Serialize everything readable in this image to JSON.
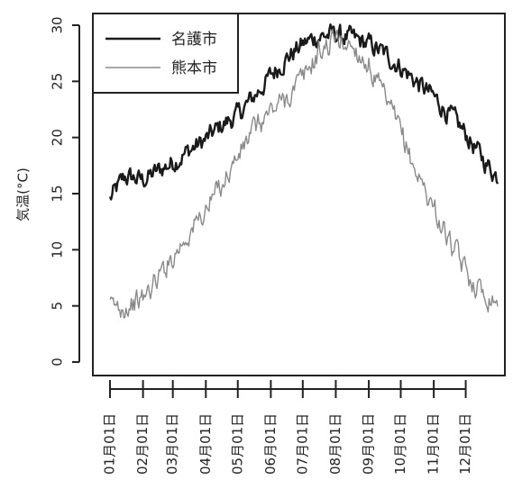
{
  "chart_data": {
    "type": "line",
    "xlabel": "",
    "ylabel": "気温(°C)",
    "ylim": [
      0,
      30
    ],
    "yticks": [
      0,
      5,
      10,
      15,
      20,
      25,
      30
    ],
    "grid": false,
    "legend_position": "top-left",
    "x_tick_labels": [
      "01月01日",
      "02月01日",
      "03月01日",
      "04月01日",
      "05月01日",
      "06月01日",
      "07月01日",
      "08月01日",
      "09月01日",
      "10月01日",
      "11月01日",
      "12月01日"
    ],
    "x_tick_days": [
      1,
      32,
      60,
      91,
      121,
      152,
      182,
      213,
      244,
      274,
      305,
      335
    ],
    "x_range_days": [
      1,
      365
    ],
    "series": [
      {
        "name": "名護市",
        "color": "#1a1a1a",
        "days": [
          1,
          15,
          32,
          46,
          60,
          75,
          91,
          105,
          121,
          135,
          152,
          166,
          182,
          196,
          213,
          228,
          244,
          258,
          274,
          288,
          305,
          320,
          335,
          350,
          365
        ],
        "values": [
          14.5,
          16.5,
          16.2,
          17.0,
          17.8,
          18.8,
          19.8,
          21.0,
          22.0,
          23.5,
          25.5,
          27.0,
          28.3,
          29.0,
          29.2,
          28.8,
          28.3,
          27.5,
          26.3,
          25.0,
          23.6,
          22.0,
          20.3,
          18.2,
          16.5
        ]
      },
      {
        "name": "熊本市",
        "color": "#8a8a8a",
        "days": [
          1,
          15,
          32,
          46,
          60,
          75,
          91,
          105,
          121,
          135,
          152,
          166,
          182,
          196,
          213,
          228,
          244,
          258,
          274,
          288,
          305,
          320,
          335,
          350,
          365
        ],
        "values": [
          4.8,
          5.0,
          5.6,
          7.5,
          9.5,
          11.5,
          13.5,
          15.8,
          18.3,
          20.5,
          22.3,
          23.5,
          25.2,
          27.5,
          28.8,
          28.2,
          26.5,
          23.5,
          20.5,
          17.0,
          13.8,
          10.5,
          8.0,
          6.3,
          5.6
        ]
      }
    ]
  }
}
